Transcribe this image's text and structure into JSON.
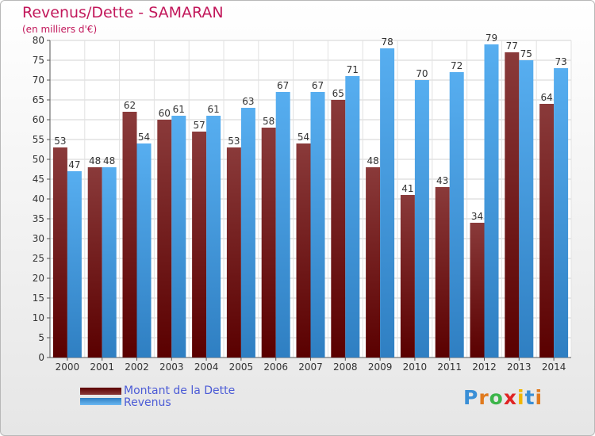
{
  "title": "Revenus/Dette - SAMARAN",
  "subtitle": "(en milliers d'€)",
  "colors": {
    "debt": "#6b0b0b",
    "revenue": "#3a9ae0",
    "title": "#c2185b",
    "legend_text": "#4b5bd6"
  },
  "legend": [
    {
      "label": "Montant de la Dette",
      "color": "#6b0b0b"
    },
    {
      "label": "Revenus",
      "color": "#3a9ae0"
    }
  ],
  "logo": {
    "letters": [
      "P",
      "r",
      "o",
      "x",
      "i",
      "t",
      "i"
    ],
    "colors": [
      "#3a8fd6",
      "#e07a1e",
      "#3cb54a",
      "#e02424",
      "#f2b600",
      "#3a8fd6",
      "#e07a1e"
    ]
  },
  "chart_data": {
    "type": "bar",
    "categories": [
      "2000",
      "2001",
      "2002",
      "2003",
      "2004",
      "2005",
      "2006",
      "2007",
      "2008",
      "2009",
      "2010",
      "2011",
      "2012",
      "2013",
      "2014"
    ],
    "series": [
      {
        "name": "Montant de la Dette",
        "values": [
          53,
          48,
          62,
          60,
          57,
          53,
          58,
          54,
          65,
          48,
          41,
          43,
          34,
          77,
          64
        ]
      },
      {
        "name": "Revenus",
        "values": [
          47,
          48,
          54,
          61,
          61,
          63,
          67,
          67,
          71,
          78,
          70,
          72,
          79,
          75,
          73
        ]
      }
    ],
    "ylim": [
      0,
      80
    ],
    "yticks": [
      0,
      5,
      10,
      15,
      20,
      25,
      30,
      35,
      40,
      45,
      50,
      55,
      60,
      65,
      70,
      75,
      80
    ],
    "grid": true,
    "legend_position": "bottom-left"
  }
}
